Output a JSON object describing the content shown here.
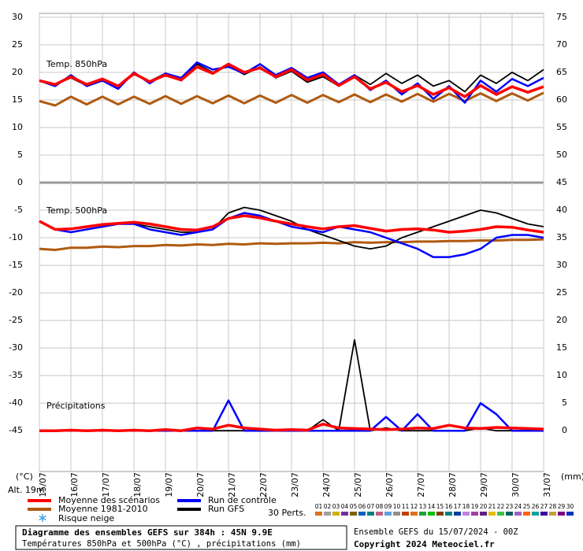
{
  "chart_data": {
    "type": "line",
    "x": [
      0,
      12,
      24,
      36,
      48,
      60,
      72,
      84,
      96,
      108,
      120,
      132,
      144,
      156,
      168,
      180,
      192,
      204,
      216,
      228,
      240,
      252,
      264,
      276,
      288,
      300,
      312,
      324,
      336,
      348,
      360,
      372,
      384
    ],
    "xlim": [
      0,
      384
    ],
    "xticks": [
      {
        "value": 0,
        "label": "15/07"
      },
      {
        "value": 24,
        "label": "16/07"
      },
      {
        "value": 48,
        "label": "17/07"
      },
      {
        "value": 72,
        "label": "18/07"
      },
      {
        "value": 96,
        "label": "19/07"
      },
      {
        "value": 120,
        "label": "20/07"
      },
      {
        "value": 144,
        "label": "21/07"
      },
      {
        "value": 168,
        "label": "22/07"
      },
      {
        "value": 192,
        "label": "23/07"
      },
      {
        "value": 216,
        "label": "24/07"
      },
      {
        "value": 240,
        "label": "25/07"
      },
      {
        "value": 264,
        "label": "26/07"
      },
      {
        "value": 288,
        "label": "27/07"
      },
      {
        "value": 312,
        "label": "28/07"
      },
      {
        "value": 336,
        "label": "29/07"
      },
      {
        "value": 360,
        "label": "30/07"
      },
      {
        "value": 384,
        "label": "31/07"
      }
    ],
    "ylim": [
      -52.4,
      30.7
    ],
    "yticks": [
      30,
      25,
      20,
      15,
      10,
      5,
      0,
      -5,
      -10,
      -15,
      -20,
      -25,
      -30,
      -35,
      -40,
      -45
    ],
    "y2lim": [
      -7.4,
      75.7
    ],
    "y2ticks": [
      75,
      70,
      65,
      60,
      55,
      50,
      45,
      40,
      35,
      30,
      25,
      20,
      15,
      10,
      5,
      0
    ],
    "ylabel": "(°C)",
    "y2label": "(mm)",
    "altitude": "Alt. 19m",
    "grid": true,
    "panels": [
      {
        "label": "Temp. 850hPa",
        "series": [
          {
            "color": "#b05a10",
            "values": [
              14.8,
              14,
              15.6,
              14.2,
              15.6,
              14.2,
              15.6,
              14.3,
              15.7,
              14.3,
              15.7,
              14.4,
              15.8,
              14.4,
              15.8,
              14.5,
              15.9,
              14.5,
              15.9,
              14.6,
              16,
              14.6,
              16,
              14.7,
              16.1,
              14.7,
              16.1,
              14.8,
              16.2,
              14.8,
              16.2,
              14.9,
              16.3
            ]
          },
          {
            "color": "#000000",
            "values": [
              18.5,
              17.8,
              19,
              17.6,
              18.6,
              17.4,
              19.6,
              18.4,
              19.8,
              18.8,
              21.5,
              20,
              21.2,
              19.6,
              21,
              19,
              20.2,
              18.2,
              19.2,
              17.5,
              19.5,
              17.8,
              19.8,
              18,
              19.5,
              17.5,
              18.5,
              16.5,
              19.5,
              18,
              20,
              18.5,
              20.5
            ]
          },
          {
            "color": "#0000ff",
            "values": [
              18.5,
              17.5,
              19.5,
              17.5,
              18.5,
              17,
              20,
              18,
              19.8,
              19,
              21.8,
              20.5,
              21,
              19.8,
              21.5,
              19.5,
              20.8,
              19,
              20,
              17.8,
              19.5,
              16.8,
              18.5,
              16,
              18,
              15.2,
              17.5,
              14.5,
              18.5,
              16.5,
              18.8,
              17.5,
              19
            ]
          },
          {
            "color": "#ff0000",
            "values": [
              18.5,
              17.8,
              19.2,
              17.8,
              18.8,
              17.5,
              19.8,
              18.3,
              19.5,
              18.6,
              21,
              19.8,
              21.5,
              20,
              20.8,
              19.2,
              20.5,
              18.6,
              19.6,
              17.6,
              19.2,
              17,
              18.2,
              16.5,
              17.6,
              16,
              17.2,
              15.6,
              17.6,
              16,
              17.4,
              16.4,
              17.4
            ]
          }
        ]
      },
      {
        "label": "Temp. 500hPa",
        "series": [
          {
            "color": "#b05a10",
            "values": [
              -12,
              -12.2,
              -11.8,
              -11.8,
              -11.6,
              -11.7,
              -11.5,
              -11.5,
              -11.3,
              -11.4,
              -11.2,
              -11.3,
              -11.1,
              -11.2,
              -11,
              -11.1,
              -11,
              -11,
              -10.9,
              -11,
              -10.8,
              -10.9,
              -10.8,
              -10.8,
              -10.7,
              -10.7,
              -10.6,
              -10.6,
              -10.5,
              -10.5,
              -10.4,
              -10.4,
              -10.3
            ]
          },
          {
            "color": "#000000",
            "values": [
              -7,
              -8.5,
              -8.5,
              -8,
              -7.5,
              -7.5,
              -7.5,
              -8,
              -8.5,
              -9,
              -9,
              -8.5,
              -5.5,
              -4.5,
              -5,
              -6,
              -7,
              -8.5,
              -9.5,
              -10.5,
              -11.5,
              -12,
              -11.5,
              -10,
              -9,
              -8,
              -7,
              -6,
              -5,
              -5.5,
              -6.5,
              -7.5,
              -8
            ]
          },
          {
            "color": "#0000ff",
            "values": [
              -7,
              -8.5,
              -9,
              -8.5,
              -8,
              -7.5,
              -7.5,
              -8.5,
              -9,
              -9.5,
              -9,
              -8.5,
              -6.5,
              -5.5,
              -6,
              -7,
              -8,
              -8.5,
              -9,
              -8,
              -8.5,
              -9,
              -10,
              -11,
              -12,
              -13.5,
              -13.5,
              -13,
              -12,
              -10,
              -9.5,
              -9.5,
              -10
            ]
          },
          {
            "color": "#ff0000",
            "values": [
              -7,
              -8.5,
              -8.4,
              -8,
              -7.6,
              -7.4,
              -7.2,
              -7.5,
              -8,
              -8.5,
              -8.6,
              -8,
              -6.5,
              -6,
              -6.4,
              -7,
              -7.5,
              -8,
              -8.4,
              -8,
              -7.8,
              -8.3,
              -8.8,
              -8.5,
              -8.4,
              -8.6,
              -9,
              -8.8,
              -8.5,
              -8,
              -8.1,
              -8.6,
              -9
            ]
          }
        ]
      },
      {
        "label": "Précipitations",
        "series": [
          {
            "color": "#000000",
            "axis": "y2",
            "values": [
              0,
              0,
              0,
              0,
              0,
              0,
              0,
              0,
              0,
              0,
              0,
              0,
              0,
              0,
              0,
              0,
              0,
              0,
              2,
              0,
              16.5,
              0,
              0.5,
              0,
              0,
              0,
              0,
              0,
              0.5,
              0,
              0,
              0,
              0
            ]
          },
          {
            "color": "#0000ff",
            "axis": "y2",
            "values": [
              0,
              0,
              0,
              0,
              0,
              0,
              0,
              0,
              0,
              0,
              0,
              0,
              5.5,
              0,
              0,
              0,
              0,
              0,
              0,
              0,
              0,
              0,
              2.5,
              0,
              3,
              0,
              0,
              0,
              5,
              3,
              0,
              0,
              0
            ]
          },
          {
            "color": "#ff0000",
            "axis": "y2",
            "values": [
              0,
              0,
              0.1,
              0,
              0.1,
              0,
              0.1,
              0,
              0.2,
              0,
              0.5,
              0.3,
              1,
              0.5,
              0.3,
              0.1,
              0.2,
              0.1,
              1.2,
              0.5,
              0.4,
              0.3,
              0.2,
              0.3,
              0.5,
              0.4,
              1,
              0.5,
              0.4,
              0.6,
              0.5,
              0.4,
              0.3
            ]
          }
        ]
      }
    ],
    "legend": [
      {
        "name": "Moyenne des scénarios",
        "color": "#ff0000"
      },
      {
        "name": "Moyenne 1981-2010",
        "color": "#b05a10"
      },
      {
        "name": "Run de contrôle",
        "color": "#0000ff"
      },
      {
        "name": "Run GFS",
        "color": "#000000"
      }
    ],
    "snow_label": "Risque neige",
    "perturbations": {
      "label": "30 Perts.",
      "names": [
        "01",
        "02",
        "03",
        "04",
        "05",
        "06",
        "07",
        "08",
        "09",
        "10",
        "11",
        "12",
        "13",
        "14",
        "15",
        "16",
        "17",
        "18",
        "19",
        "20",
        "21",
        "22",
        "23",
        "24",
        "25",
        "26",
        "27",
        "28",
        "29",
        "30"
      ],
      "colors": [
        "#e07020",
        "#a0a0a0",
        "#d0b000",
        "#7030a0",
        "#806000",
        "#0060c0",
        "#008080",
        "#c06080",
        "#60a0e0",
        "#909090",
        "#c04000",
        "#e07020",
        "#20a040",
        "#00c000",
        "#804000",
        "#008080",
        "#0040a0",
        "#c080e0",
        "#a040a0",
        "#602080",
        "#e0c000",
        "#40c040",
        "#006060",
        "#a060c0",
        "#ff6000",
        "#00a0a0",
        "#4000a0",
        "#c0a040",
        "#800080",
        "#0030c0"
      ]
    },
    "title": "Diagramme des ensembles GEFS sur 384h : 45N 9.9E",
    "subtitle": "Températures 850hPa et 500hPa (°C) , précipitations (mm)",
    "run_info": "Ensemble GEFS du 15/07/2024 - 00Z",
    "copyright": "Copyright 2024 Meteociel.fr"
  }
}
